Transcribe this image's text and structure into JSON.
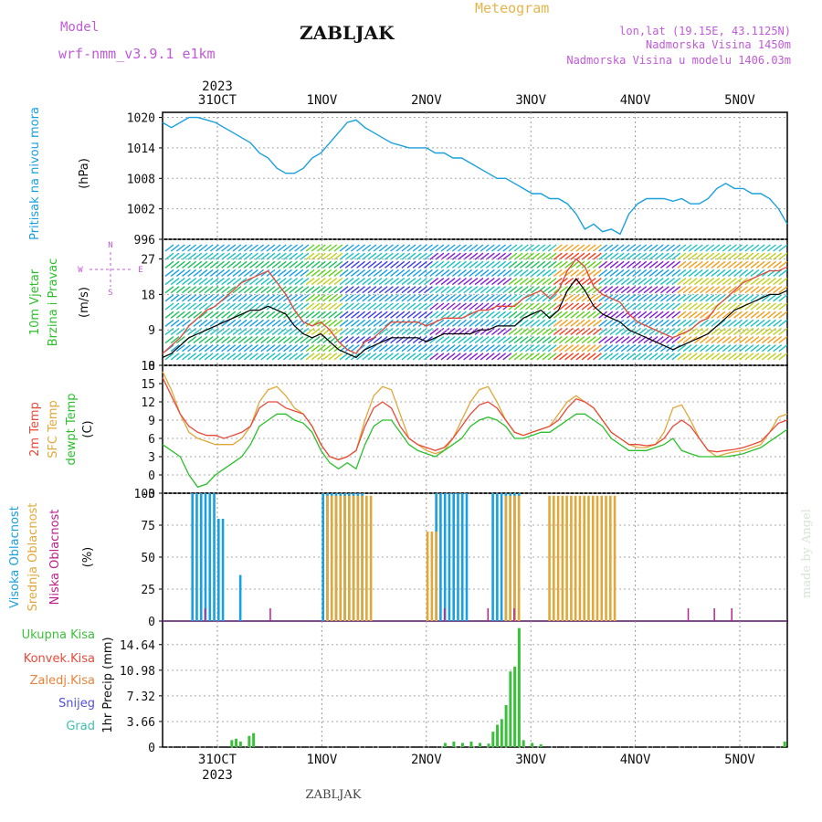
{
  "header": {
    "model_label": "Model",
    "model_name": "wrf-nmm_v3.9.1 e1km",
    "station": "ZABLJAK",
    "product": "Meteogram",
    "coords": "lon,lat (19.15E, 43.1125N)",
    "altitude": "Nadmorska Visina 1450m",
    "model_altitude": "Nadmorska Visina u modelu 1406.03m",
    "footer_station": "ZABLJAK",
    "credit": "made by Angel"
  },
  "colors": {
    "pressure": "#1aa0e0",
    "wind_speed": "#000000",
    "wind_gust": "#e04a3a",
    "temp_2m": "#e84a3a",
    "temp_sfc": "#e0a83a",
    "dewpoint": "#2cc02c",
    "cloud_high": "#1aa0e0",
    "cloud_mid": "#e0a83a",
    "cloud_low": "#c0208a",
    "precip_total": "#3cc03c",
    "precip_conv": "#e84a3a",
    "precip_frozen": "#e8843a",
    "precip_snow": "#5050e0",
    "precip_hail": "#3cc0b0",
    "label_purple": "#c05ad8",
    "label_orange": "#e8b44a"
  },
  "time_axis": {
    "year": "2023",
    "days": [
      "31OCT",
      "1NOV",
      "2NOV",
      "3NOV",
      "4NOV",
      "5NOV"
    ]
  },
  "chart_data": [
    {
      "type": "line",
      "title": "Pritisak na nivou mora",
      "ylabel": "(hPa)",
      "ylim": [
        996,
        1021
      ],
      "yticks": [
        "1020",
        "1014",
        "1008",
        "1002",
        "996"
      ],
      "x_hours_start": -30,
      "series": [
        {
          "values": [
            1019,
            1018,
            1019,
            1020,
            1020,
            1019.5,
            1019,
            1018,
            1017,
            1016,
            1015,
            1013,
            1012,
            1010,
            1009,
            1009,
            1010,
            1012,
            1013,
            1015,
            1017,
            1019,
            1019.5,
            1018,
            1017,
            1016,
            1015,
            1014.5,
            1014,
            1014,
            1014,
            1013,
            1013,
            1012,
            1012,
            1011,
            1010,
            1009,
            1008,
            1008,
            1007,
            1006,
            1005,
            1005,
            1004,
            1004,
            1003,
            1001,
            998,
            999,
            997.5,
            998,
            997,
            1001,
            1003,
            1004,
            1004,
            1004,
            1003.5,
            1004,
            1003,
            1003,
            1004,
            1006,
            1007,
            1006,
            1006,
            1005,
            1005,
            1004,
            1002,
            999
          ]
        }
      ]
    },
    {
      "type": "line",
      "title": "10m Vjetar",
      "subtitle": "Brzina i Pravac",
      "ylabel": "(m/s)",
      "ylim": [
        0,
        32
      ],
      "yticks": [
        "27",
        "18",
        "9",
        "0"
      ],
      "compass": [
        "N",
        "W",
        "E",
        "S"
      ],
      "x_hours_start": -30,
      "series": [
        {
          "values": [
            2,
            3,
            5,
            7,
            8,
            9,
            10,
            11,
            12,
            13,
            14,
            14,
            15,
            14,
            13,
            10,
            8,
            7,
            8,
            6,
            4,
            3,
            2,
            4,
            5,
            6,
            7,
            7,
            7,
            7,
            6,
            7,
            8,
            8,
            8,
            8,
            9,
            9,
            10,
            10,
            10,
            12,
            13,
            14,
            12,
            14,
            19,
            22,
            19,
            15,
            13,
            12,
            11,
            9,
            8,
            7,
            6,
            5,
            4,
            5,
            6,
            7,
            8,
            10,
            12,
            14,
            15,
            16,
            17,
            18,
            18,
            19
          ]
        },
        {
          "values": [
            3,
            5,
            7,
            10,
            12,
            14,
            15,
            17,
            19,
            21,
            22,
            23,
            24,
            21,
            18,
            14,
            11,
            10,
            11,
            9,
            6,
            4,
            3,
            6,
            7,
            9,
            11,
            11,
            11,
            11,
            10,
            11,
            12,
            12,
            12,
            13,
            14,
            14,
            15,
            15,
            15,
            17,
            18,
            19,
            17,
            19,
            24,
            27,
            25,
            20,
            18,
            17,
            16,
            13,
            11,
            10,
            9,
            8,
            7,
            8,
            9,
            11,
            12,
            15,
            17,
            19,
            21,
            22,
            23,
            24,
            24,
            25
          ]
        }
      ]
    },
    {
      "type": "line",
      "title": "2m Temp",
      "subtitle": "SFC Temp",
      "subtitle2": "dewpt Temp",
      "ylabel": "(C)",
      "ylim": [
        -3,
        18
      ],
      "yticks": [
        "18",
        "15",
        "12",
        "9",
        "6",
        "3",
        "0",
        "-3"
      ],
      "x_hours_start": -30,
      "series": [
        {
          "values": [
            16,
            13,
            10,
            8,
            7,
            6.5,
            6.5,
            6,
            6.5,
            7,
            8,
            11,
            12,
            12,
            11,
            10.5,
            10,
            8,
            5,
            3,
            2.5,
            3,
            4,
            8,
            11,
            12,
            11,
            8,
            6,
            5,
            4.5,
            4,
            4.5,
            6,
            8,
            10,
            11.5,
            12,
            11,
            9,
            7,
            6.5,
            7,
            7.5,
            8,
            9,
            11,
            12.5,
            12,
            11,
            9,
            7,
            6,
            5,
            5,
            4.8,
            5,
            6,
            8,
            9,
            8,
            6,
            4,
            3.8,
            4,
            4.2,
            4.5,
            5,
            5.5,
            7,
            8.5,
            9
          ]
        },
        {
          "values": [
            17,
            14,
            10,
            7,
            6,
            5.5,
            5,
            5,
            5,
            6,
            8,
            12,
            14,
            14.5,
            13,
            11,
            10,
            8,
            5,
            3,
            2.5,
            3,
            4,
            9,
            13,
            14.5,
            14,
            10,
            6,
            5,
            4,
            3.5,
            4,
            6,
            9,
            12,
            14,
            14.5,
            12,
            9,
            7,
            6.5,
            7,
            7.5,
            8,
            10,
            12,
            13,
            12,
            11,
            9,
            7,
            6,
            5,
            4.5,
            4.5,
            5,
            7,
            11,
            11.5,
            9,
            6,
            4,
            3,
            3.5,
            3.8,
            4,
            4.5,
            5,
            7,
            9.5,
            10
          ]
        },
        {
          "values": [
            5,
            4,
            3,
            0,
            -2,
            -1.5,
            0,
            1,
            2,
            3,
            5,
            8,
            9,
            10,
            10,
            9,
            8.5,
            7,
            4,
            2,
            1,
            2,
            1,
            5,
            8,
            9,
            9,
            7,
            5,
            4,
            3.5,
            3,
            4,
            5,
            6,
            8,
            9,
            9.5,
            9,
            8,
            6,
            6,
            6.5,
            7,
            7,
            8,
            9,
            10,
            10,
            9,
            8,
            6,
            5,
            4,
            4,
            4,
            4.5,
            5,
            6,
            4,
            3.5,
            3,
            3,
            3,
            3,
            3.2,
            3.5,
            4,
            4.5,
            5.5,
            6.5,
            7.5
          ]
        }
      ]
    },
    {
      "type": "bar",
      "title": "Visoka Oblacnost",
      "subtitle": "Srednja Oblacnost",
      "subtitle2": "Niska Oblacnost",
      "ylabel": "(%)",
      "ylim": [
        0,
        100
      ],
      "yticks": [
        "100",
        "75",
        "50",
        "25",
        "0"
      ],
      "blocks": [
        {
          "series": "high",
          "start": -6,
          "end": 0,
          "value": 100
        },
        {
          "series": "high",
          "start": 0,
          "end": 2,
          "value": 80
        },
        {
          "series": "high",
          "start": 5,
          "end": 6,
          "value": 36
        },
        {
          "series": "high",
          "start": 24,
          "end": 34,
          "value": 100
        },
        {
          "series": "mid",
          "start": 25,
          "end": 36,
          "value": 98
        },
        {
          "series": "high",
          "start": 50,
          "end": 58,
          "value": 100
        },
        {
          "series": "mid",
          "start": 48,
          "end": 51,
          "value": 70
        },
        {
          "series": "high",
          "start": 63,
          "end": 70,
          "value": 100
        },
        {
          "series": "mid",
          "start": 66,
          "end": 70,
          "value": 98
        },
        {
          "series": "mid",
          "start": 76,
          "end": 92,
          "value": 98
        }
      ]
    },
    {
      "type": "bar",
      "title": "Ukupna Kisa",
      "subtitle": "Konvek.Kisa",
      "subtitle2": "Zaledj.Kisa",
      "subtitle3": "Snijeg",
      "subtitle4": "Grad",
      "ylabel": "1hr Precip (mm)",
      "ylim": [
        0,
        18
      ],
      "yticks": [
        "14.64",
        "10.98",
        "7.32",
        "3.66",
        "0"
      ],
      "bars_total": [
        {
          "hour": 3,
          "value": 1.0
        },
        {
          "hour": 4,
          "value": 1.2
        },
        {
          "hour": 5,
          "value": 0.8
        },
        {
          "hour": 7,
          "value": 1.6
        },
        {
          "hour": 8,
          "value": 2.0
        },
        {
          "hour": 52,
          "value": 0.6
        },
        {
          "hour": 54,
          "value": 0.8
        },
        {
          "hour": 56,
          "value": 0.6
        },
        {
          "hour": 58,
          "value": 0.8
        },
        {
          "hour": 60,
          "value": 0.6
        },
        {
          "hour": 62,
          "value": 0.5
        },
        {
          "hour": 63,
          "value": 2.2
        },
        {
          "hour": 64,
          "value": 3.2
        },
        {
          "hour": 65,
          "value": 4.0
        },
        {
          "hour": 66,
          "value": 6.0
        },
        {
          "hour": 67,
          "value": 10.8
        },
        {
          "hour": 68,
          "value": 11.5
        },
        {
          "hour": 69,
          "value": 17.0
        },
        {
          "hour": 70,
          "value": 1.0
        },
        {
          "hour": 72,
          "value": 0.6
        },
        {
          "hour": 74,
          "value": 0.4
        },
        {
          "hour": 130,
          "value": 0.8
        }
      ]
    }
  ]
}
